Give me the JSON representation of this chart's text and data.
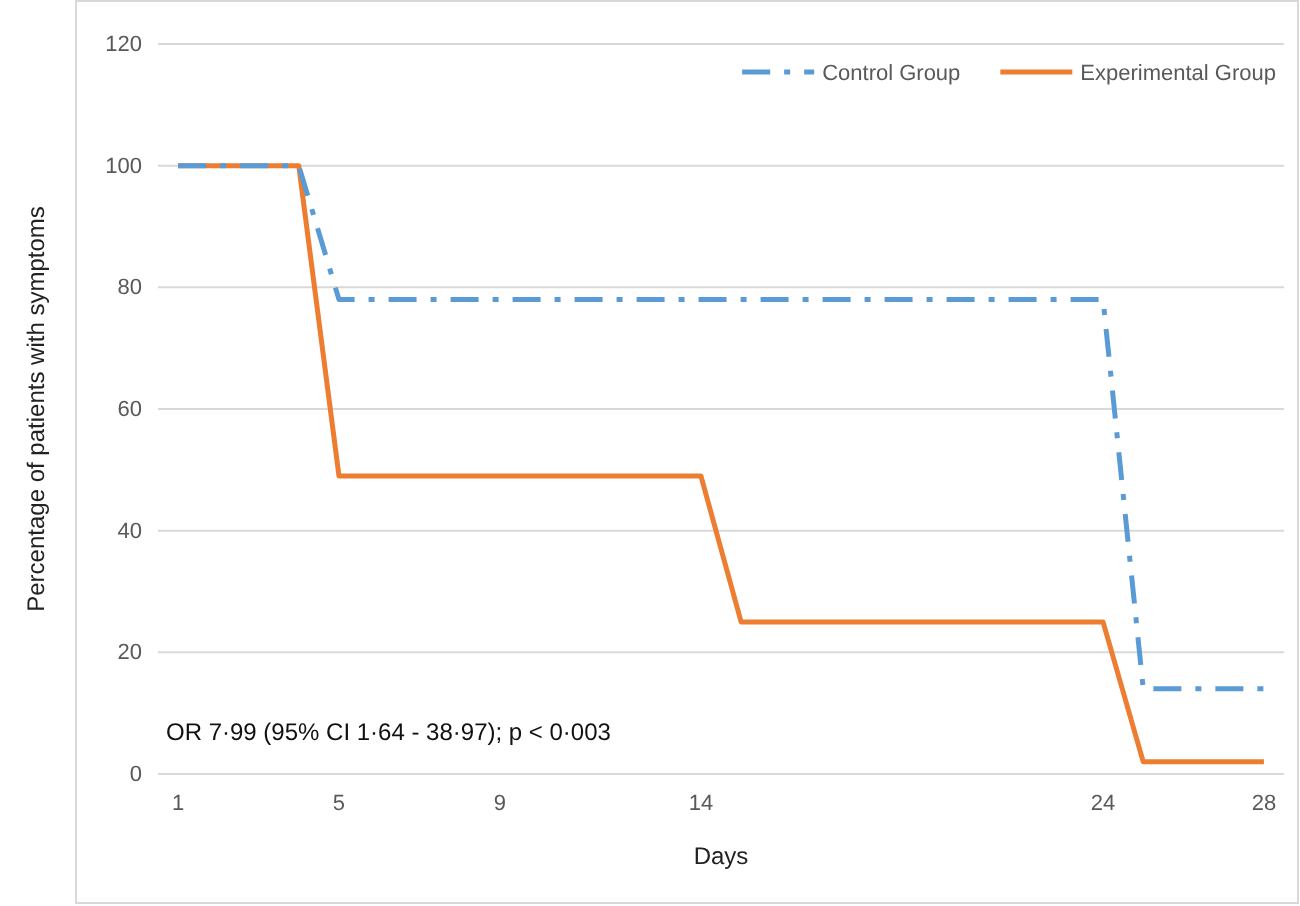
{
  "chart_data": {
    "type": "line",
    "xlabel": "Days",
    "ylabel": "Percentage of patients with symptoms",
    "xlim": [
      0.5,
      28.5
    ],
    "xticks": [
      1,
      5,
      9,
      14,
      24,
      28
    ],
    "ylim": [
      0,
      120
    ],
    "yticks": [
      0,
      20,
      40,
      60,
      80,
      100,
      120
    ],
    "grid": "y",
    "legend": "top right",
    "marker": "none",
    "series": [
      {
        "name": "Control Group",
        "color": "#5b9bd5",
        "line_style": "dashed",
        "x": [
          1,
          4,
          5,
          24,
          25,
          28
        ],
        "values": [
          100,
          100,
          78,
          78,
          14,
          14
        ]
      },
      {
        "name": "Experimental Group",
        "color": "#ed7d31",
        "line_style": "solid",
        "x": [
          1,
          4,
          5,
          14,
          15,
          24,
          25,
          28
        ],
        "values": [
          100,
          100,
          49,
          49,
          25,
          25,
          2,
          2
        ]
      }
    ],
    "annotations": [
      "OR 7·99 (95% CI 1·64 - 38·97); p < 0·003"
    ]
  }
}
